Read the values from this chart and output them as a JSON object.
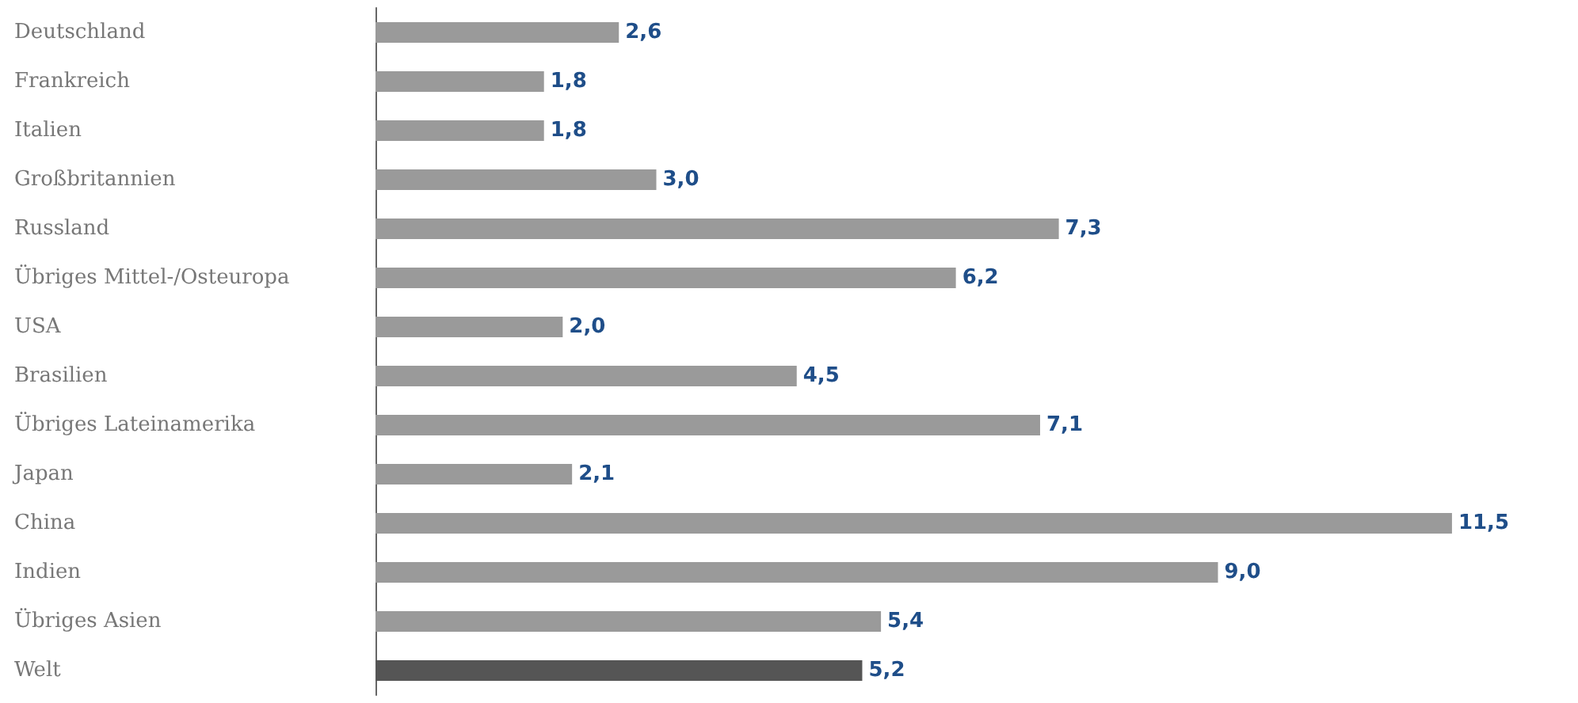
{
  "chart_data": {
    "type": "bar",
    "orientation": "horizontal",
    "tick_labels": "y",
    "categories": [
      "Deutschland",
      "Frankreich",
      "Italien",
      "Großbritannien",
      "Russland",
      "Übriges Mittel-/Osteuropa",
      "USA",
      "Brasilien",
      "Übriges Lateinamerika",
      "Japan",
      "China",
      "Indien",
      "Übriges Asien",
      "Welt"
    ],
    "values": [
      2.6,
      1.8,
      1.8,
      3.0,
      7.3,
      6.2,
      2.0,
      4.5,
      7.1,
      2.1,
      11.5,
      9.0,
      5.4,
      5.2
    ],
    "value_labels": [
      "2,6",
      "1,8",
      "1,8",
      "3,0",
      "7,3",
      "6,2",
      "2,0",
      "4,5",
      "7,1",
      "2,1",
      "11,5",
      "9,0",
      "5,4",
      "5,2"
    ],
    "colors": [
      "#9a9a9a",
      "#9a9a9a",
      "#9a9a9a",
      "#9a9a9a",
      "#9a9a9a",
      "#9a9a9a",
      "#9a9a9a",
      "#9a9a9a",
      "#9a9a9a",
      "#9a9a9a",
      "#9a9a9a",
      "#9a9a9a",
      "#9a9a9a",
      "#555555"
    ]
  }
}
